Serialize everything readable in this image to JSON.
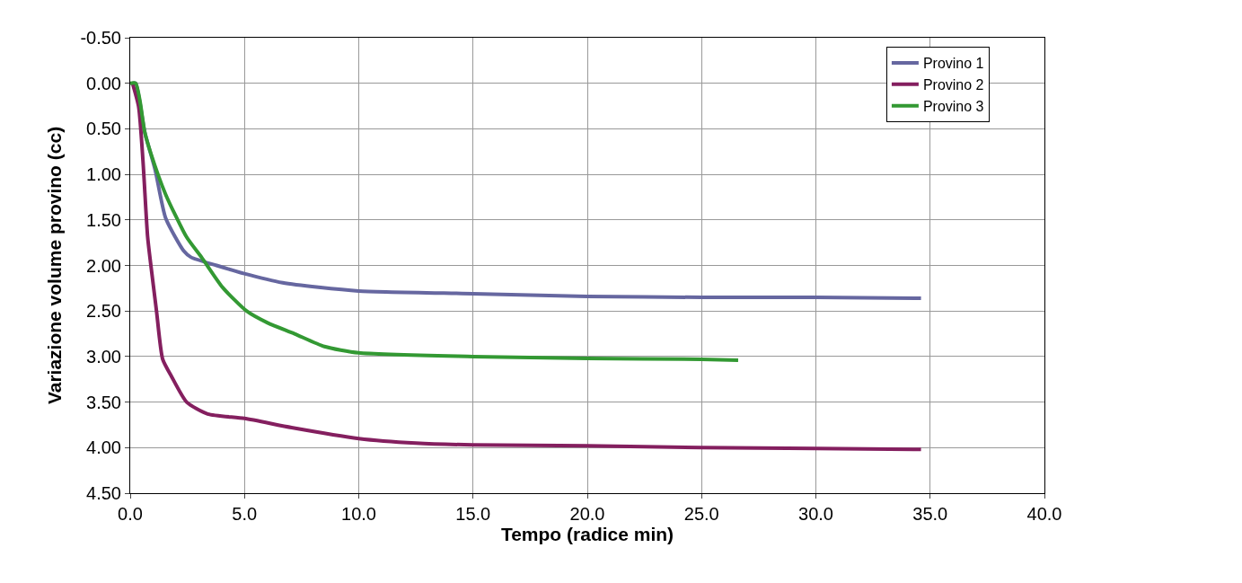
{
  "chart_data": {
    "type": "line",
    "xlabel": "Tempo (radice min)",
    "ylabel": "Variazione volume provino (cc)",
    "xlim": [
      0,
      40
    ],
    "xticks": [
      {
        "value": 0,
        "label": "0.0"
      },
      {
        "value": 5,
        "label": "5.0"
      },
      {
        "value": 10,
        "label": "10.0"
      },
      {
        "value": 15,
        "label": "15.0"
      },
      {
        "value": 20,
        "label": "20.0"
      },
      {
        "value": 25,
        "label": "25.0"
      },
      {
        "value": 30,
        "label": "30.0"
      },
      {
        "value": 35,
        "label": "35.0"
      },
      {
        "value": 40,
        "label": "40.0"
      }
    ],
    "ylim": [
      4.5,
      -0.5
    ],
    "yticks": [
      {
        "value": -0.5,
        "label": "-0.50"
      },
      {
        "value": 0,
        "label": "0.00"
      },
      {
        "value": 0.5,
        "label": "0.50"
      },
      {
        "value": 1,
        "label": "1.00"
      },
      {
        "value": 1.5,
        "label": "1.50"
      },
      {
        "value": 2,
        "label": "2.00"
      },
      {
        "value": 2.5,
        "label": "2.50"
      },
      {
        "value": 3,
        "label": "3.00"
      },
      {
        "value": 3.5,
        "label": "3.50"
      },
      {
        "value": 4,
        "label": "4.00"
      },
      {
        "value": 4.5,
        "label": "4.50"
      }
    ],
    "grid": true,
    "legend": "top right",
    "marker": "none",
    "line_style": "solid",
    "series": [
      {
        "name": "Provino 1",
        "color": "#6667a0",
        "x": [
          0.1,
          0.24,
          0.63,
          1.09,
          1.55,
          2.34,
          2.66,
          3.78,
          5.0,
          6.67,
          8.24,
          10.0,
          15,
          20,
          25,
          30,
          34.6
        ],
        "values": [
          0,
          0,
          0.53,
          0.95,
          1.48,
          1.84,
          1.91,
          2.0,
          2.09,
          2.19,
          2.24,
          2.28,
          2.31,
          2.34,
          2.35,
          2.35,
          2.36
        ]
      },
      {
        "name": "Provino 2",
        "color": "#841f5f",
        "x": [
          0.1,
          0.37,
          0.56,
          0.76,
          0.89,
          1.15,
          1.42,
          1.81,
          2.47,
          3.39,
          5.0,
          7.06,
          10.0,
          12.5,
          15,
          20,
          25,
          30,
          34.6
        ],
        "values": [
          0,
          0.26,
          0.86,
          1.68,
          1.97,
          2.5,
          3.03,
          3.22,
          3.5,
          3.63,
          3.68,
          3.78,
          3.9,
          3.95,
          3.97,
          3.98,
          4.0,
          4.01,
          4.02
        ]
      },
      {
        "name": "Provino 3",
        "color": "#339933",
        "x": [
          0,
          0.24,
          0.43,
          0.63,
          0.89,
          1.55,
          2.47,
          3.12,
          4.04,
          5.09,
          6.01,
          7.19,
          8.5,
          10.0,
          15,
          20,
          25,
          26.6
        ],
        "values": [
          0,
          0,
          0.2,
          0.53,
          0.76,
          1.22,
          1.69,
          1.91,
          2.24,
          2.5,
          2.63,
          2.75,
          2.89,
          2.96,
          3.0,
          3.02,
          3.03,
          3.04
        ]
      }
    ]
  }
}
